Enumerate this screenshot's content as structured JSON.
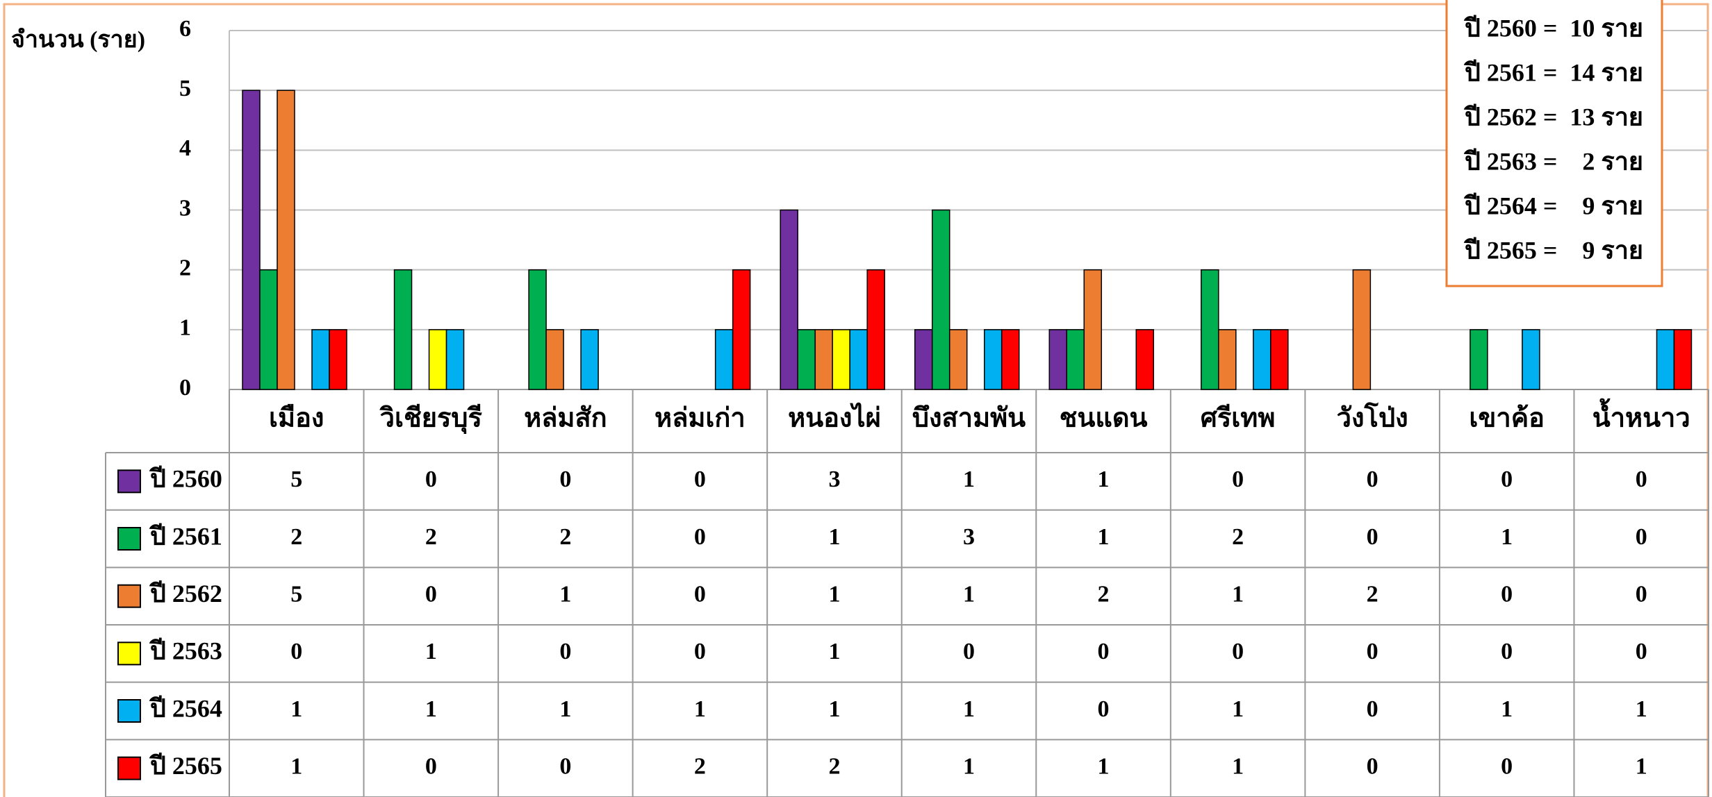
{
  "chart_data": {
    "type": "bar",
    "y_label": "จำนวน (ราย)",
    "categories": [
      "เมือง",
      "วิเชียรบุรี",
      "หล่มสัก",
      "หล่มเก่า",
      "หนองไผ่",
      "บึงสามพัน",
      "ชนแดน",
      "ศรีเทพ",
      "วังโป่ง",
      "เขาค้อ",
      "น้ำหนาว"
    ],
    "series": [
      {
        "name": "ปี 2560",
        "color": "#7030a0",
        "values": [
          5,
          0,
          0,
          0,
          3,
          1,
          1,
          0,
          0,
          0,
          0
        ]
      },
      {
        "name": "ปี 2561",
        "color": "#00b050",
        "values": [
          2,
          2,
          2,
          0,
          1,
          3,
          1,
          2,
          0,
          1,
          0
        ]
      },
      {
        "name": "ปี 2562",
        "color": "#ed7d31",
        "values": [
          5,
          0,
          1,
          0,
          1,
          1,
          2,
          1,
          2,
          0,
          0
        ]
      },
      {
        "name": "ปี 2563",
        "color": "#ffff00",
        "values": [
          0,
          1,
          0,
          0,
          1,
          0,
          0,
          0,
          0,
          0,
          0
        ]
      },
      {
        "name": "ปี 2564",
        "color": "#00b0f0",
        "values": [
          1,
          1,
          1,
          1,
          1,
          1,
          0,
          1,
          0,
          1,
          1
        ]
      },
      {
        "name": "ปี 2565",
        "color": "#ff0000",
        "values": [
          1,
          0,
          0,
          2,
          2,
          1,
          1,
          1,
          0,
          0,
          1
        ]
      }
    ],
    "ylim": [
      0,
      6
    ],
    "yticks": [
      0,
      1,
      2,
      3,
      4,
      5,
      6
    ],
    "grid": true,
    "annotations": [
      "ปี 2560 =  10 ราย",
      "ปี 2561 =  14 ราย",
      "ปี 2562 =  13 ราย",
      "ปี 2563 =    2 ราย",
      "ปี 2564 =    9 ราย",
      "ปี 2565 =    9 ราย"
    ]
  }
}
